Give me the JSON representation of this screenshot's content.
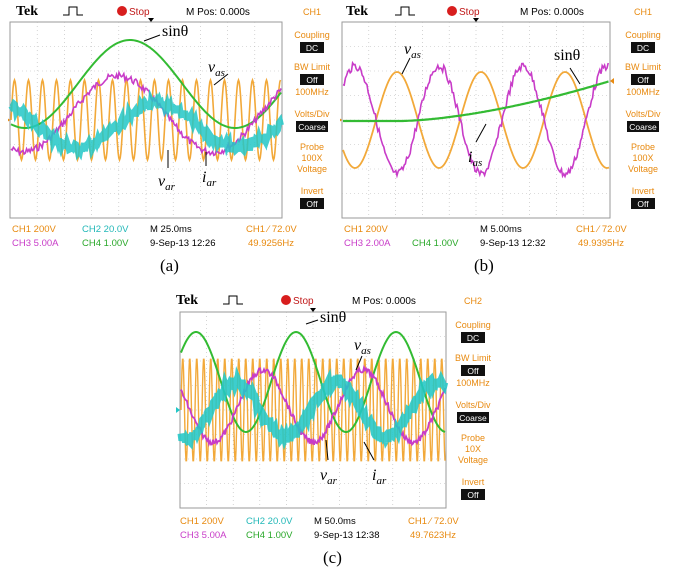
{
  "colors": {
    "ch1": "#f2a93a",
    "ch2": "#22c7c7",
    "ch3": "#c83cc8",
    "ch4": "#33bb33",
    "grid": "#b9b9b9",
    "stop": "#d81e1e",
    "accent": "#e88a10"
  },
  "panels": [
    {
      "caption": "(a)",
      "header": {
        "brand": "Tek",
        "run_state": "Stop",
        "position": "M Pos: 0.000s",
        "active_channel": "CH1"
      },
      "side_menu": {
        "coupling_label": "Coupling",
        "coupling_value": "DC",
        "bw_label": "BW Limit",
        "bw_value": "Off",
        "bw_freq": "100MHz",
        "volts_label": "Volts/Div",
        "volts_value": "Coarse",
        "probe_label": "Probe",
        "probe_value": "100X",
        "probe_type": "Voltage",
        "invert_label": "Invert",
        "invert_value": "Off"
      },
      "status": {
        "ch1": "CH1",
        "ch1_scale": "200V",
        "ch2": "CH2",
        "ch2_scale": "20.0V",
        "ch3": "CH3",
        "ch3_scale": "5.00A",
        "ch4": "CH4",
        "ch4_scale": "1.00V",
        "timebase": "M 25.0ms",
        "date": "9-Sep-13 12:26",
        "trigger": "CH1 ∕ 72.0V",
        "frequency": "49.9256Hz"
      },
      "annotations": {
        "sin": "sinθ",
        "v_s": "v",
        "v_s_sub": "as",
        "v_r": "v",
        "v_r_sub": "ar",
        "i": "i",
        "i_sub": "ar"
      }
    },
    {
      "caption": "(b)",
      "header": {
        "brand": "Tek",
        "run_state": "Stop",
        "position": "M Pos: 0.000s",
        "active_channel": "CH1"
      },
      "side_menu": {
        "coupling_label": "Coupling",
        "coupling_value": "DC",
        "bw_label": "BW Limit",
        "bw_value": "Off",
        "bw_freq": "100MHz",
        "volts_label": "Volts/Div",
        "volts_value": "Coarse",
        "probe_label": "Probe",
        "probe_value": "100X",
        "probe_type": "Voltage",
        "invert_label": "Invert",
        "invert_value": "Off"
      },
      "status": {
        "ch1": "CH1",
        "ch1_scale": "200V",
        "ch3": "CH3",
        "ch3_scale": "2.00A",
        "ch4": "CH4",
        "ch4_scale": "1.00V",
        "timebase": "M 5.00ms",
        "date": "9-Sep-13 12:32",
        "trigger": "CH1 ∕ 72.0V",
        "frequency": "49.9395Hz"
      },
      "annotations": {
        "sin": "sinθ",
        "v_s": "v",
        "v_s_sub": "as",
        "i": "i",
        "i_sub": "as"
      }
    },
    {
      "caption": "(c)",
      "header": {
        "brand": "Tek",
        "run_state": "Stop",
        "position": "M Pos: 0.000s",
        "active_channel": "CH2"
      },
      "side_menu": {
        "coupling_label": "Coupling",
        "coupling_value": "DC",
        "bw_label": "BW Limit",
        "bw_value": "Off",
        "bw_freq": "100MHz",
        "volts_label": "Volts/Div",
        "volts_value": "Coarse",
        "probe_label": "Probe",
        "probe_value": "10X",
        "probe_type": "Voltage",
        "invert_label": "Invert",
        "invert_value": "Off"
      },
      "status": {
        "ch1": "CH1",
        "ch1_scale": "200V",
        "ch2": "CH2",
        "ch2_scale": "20.0V",
        "ch3": "CH3",
        "ch3_scale": "5.00A",
        "ch4": "CH4",
        "ch4_scale": "1.00V",
        "timebase": "M 50.0ms",
        "date": "9-Sep-13 12:38",
        "trigger": "CH1 ∕ 72.0V",
        "frequency": "49.7623Hz"
      },
      "annotations": {
        "sin": "sinθ",
        "v_s": "v",
        "v_s_sub": "as",
        "v_r": "v",
        "v_r_sub": "ar",
        "i": "i",
        "i_sub": "ar"
      }
    }
  ]
}
